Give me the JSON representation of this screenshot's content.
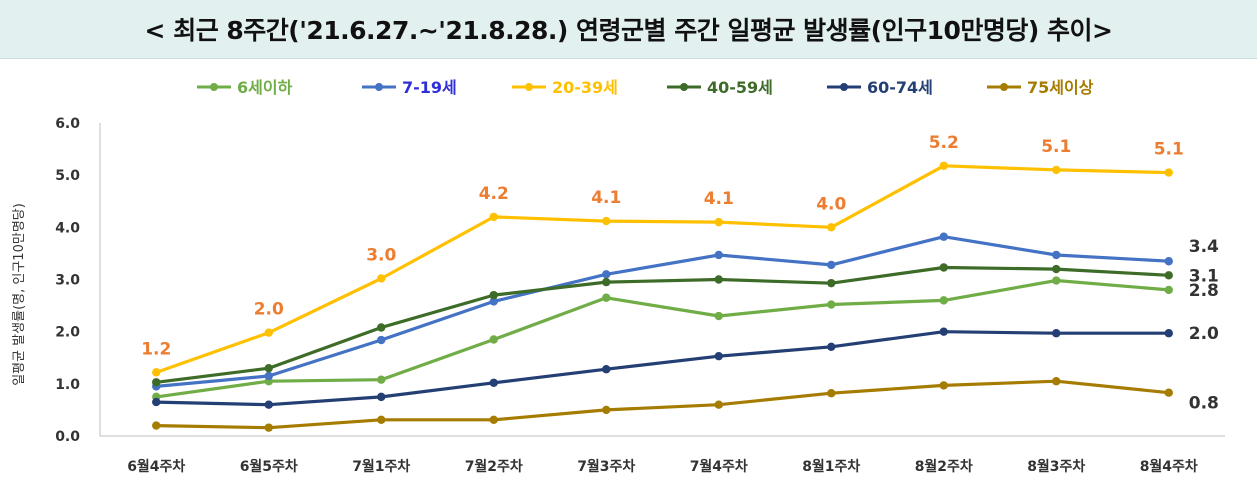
{
  "title": "< 최근 8주간('21.6.27.~'21.8.28.) 연령군별 주간 일평균 발생률(인구10만명당) 추이>",
  "chart_data": {
    "type": "line",
    "title": "< 최근 8주간('21.6.27.~'21.8.28.) 연령군별 주간 일평균 발생률(인구10만명당) 추이>",
    "xlabel": "",
    "ylabel": "일평균 발생률(명, 인구10만명당)",
    "ylim": [
      0,
      6
    ],
    "yticks": [
      "0.0",
      "1.0",
      "2.0",
      "3.0",
      "4.0",
      "5.0",
      "6.0"
    ],
    "legend_position": "top",
    "categories": [
      "6월4주차",
      "6월5주차",
      "7월1주차",
      "7월2주차",
      "7월3주차",
      "7월4주차",
      "8월1주차",
      "8월2주차",
      "8월3주차",
      "8월4주차"
    ],
    "series": [
      {
        "name": "6세이하",
        "color": "#70ad47",
        "values": [
          0.75,
          1.05,
          1.08,
          1.85,
          2.65,
          2.3,
          2.52,
          2.6,
          2.98,
          2.8
        ],
        "end_label": "2.8",
        "point_labels": []
      },
      {
        "name": "7-19세",
        "color": "#4472c4",
        "values": [
          0.95,
          1.15,
          1.84,
          2.58,
          3.1,
          3.47,
          3.28,
          3.82,
          3.47,
          3.35
        ],
        "end_label": "3.4",
        "point_labels": []
      },
      {
        "name": "20-39세",
        "color": "#ffc000",
        "values": [
          1.22,
          1.98,
          3.02,
          4.2,
          4.12,
          4.1,
          4.0,
          5.18,
          5.1,
          5.05
        ],
        "end_label": "",
        "point_labels": [
          "1.2",
          "2.0",
          "3.0",
          "4.2",
          "4.1",
          "4.1",
          "4.0",
          "5.2",
          "5.1",
          "5.1"
        ]
      },
      {
        "name": "40-59세",
        "color": "#3d6b28",
        "values": [
          1.03,
          1.3,
          2.08,
          2.7,
          2.95,
          3.0,
          2.93,
          3.23,
          3.2,
          3.08
        ],
        "end_label": "3.1",
        "point_labels": []
      },
      {
        "name": "60-74세",
        "color": "#233f74",
        "values": [
          0.65,
          0.6,
          0.75,
          1.02,
          1.28,
          1.53,
          1.71,
          2.0,
          1.97,
          1.97
        ],
        "end_label": "2.0",
        "point_labels": []
      },
      {
        "name": "75세이상",
        "color": "#a67c00",
        "values": [
          0.2,
          0.16,
          0.31,
          0.31,
          0.5,
          0.6,
          0.82,
          0.97,
          1.05,
          0.83
        ],
        "end_label": "0.8",
        "point_labels": []
      }
    ]
  },
  "legend_text_colors": [
    "#70ad47",
    "#2f2fd8",
    "#ffc000",
    "#3d6b28",
    "#233f74",
    "#a67c00"
  ],
  "point_label_color": "#ed7d31"
}
